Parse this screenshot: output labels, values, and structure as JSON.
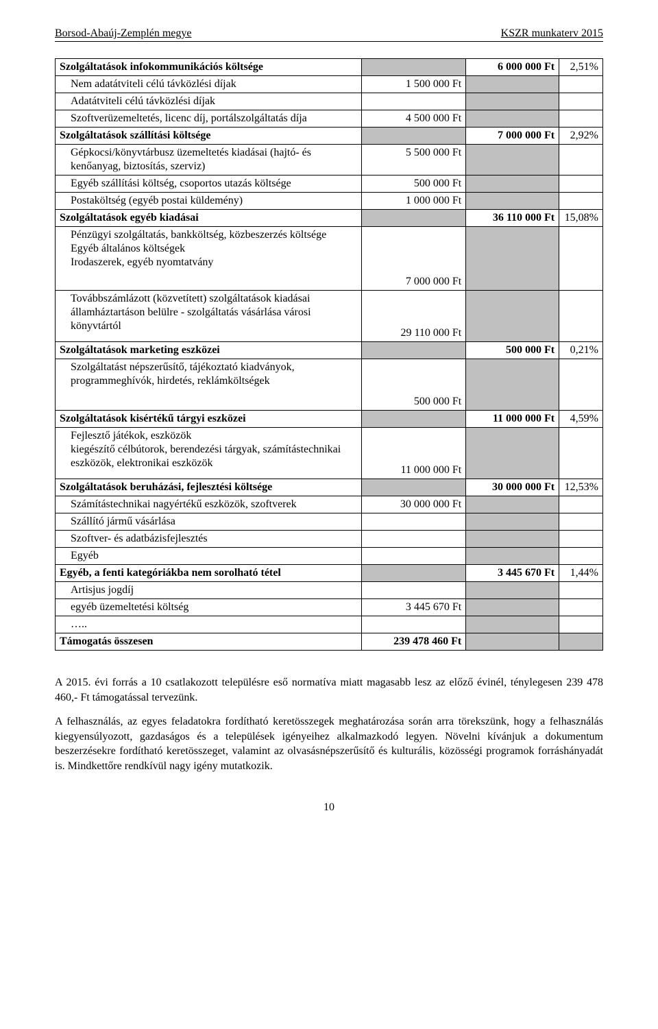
{
  "header": {
    "left": "Borsod-Abaúj-Zemplén megye",
    "right": "KSZR munkaterv 2015"
  },
  "rows": [
    {
      "type": "cat",
      "c1": "Szolgáltatások infokommunikációs költsége",
      "c3": "6 000 000 Ft",
      "c4": "2,51%"
    },
    {
      "type": "sub",
      "c1": "Nem adatátviteli célú távközlési díjak",
      "c2": "1 500 000 Ft"
    },
    {
      "type": "sub",
      "c1": "Adatátviteli célú távközlési díjak",
      "c2": ""
    },
    {
      "type": "sub",
      "c1": "Szoftverüzemeltetés, licenc díj, portálszolgáltatás díja",
      "c2": "4 500 000 Ft"
    },
    {
      "type": "cat",
      "c1": "Szolgáltatások szállítási költsége",
      "c3": "7 000 000 Ft",
      "c4": "2,92%"
    },
    {
      "type": "sub",
      "c1": "Gépkocsi/könyvtárbusz üzemeltetés kiadásai (hajtó- és kenőanyag, biztosítás, szerviz)",
      "c2": "5 500 000 Ft"
    },
    {
      "type": "sub",
      "c1": "Egyéb szállítási költség, csoportos utazás költsége",
      "c2": "500 000 Ft"
    },
    {
      "type": "sub",
      "c1": "Postaköltség (egyéb postai küldemény)",
      "c2": "1 000 000 Ft"
    },
    {
      "type": "cat",
      "c1": "Szolgáltatások egyéb kiadásai",
      "c3": "36 110 000 Ft",
      "c4": "15,08%"
    },
    {
      "type": "subtall",
      "c1": "Pénzügyi szolgáltatás, bankköltség, közbeszerzés költsége\nEgyéb általános költségek\nIrodaszerek, egyéb nyomtatvány",
      "c2": "7 000 000 Ft"
    },
    {
      "type": "subtall2",
      "c1": "Továbbszámlázott (közvetített) szolgáltatások kiadásai államháztartáson belülre - szolgáltatás vásárlása városi könyvtártól",
      "c2": "29 110 000 Ft"
    },
    {
      "type": "cat",
      "c1": "Szolgáltatások marketing eszközei",
      "c3": "500 000 Ft",
      "c4": "0,21%"
    },
    {
      "type": "subtall2",
      "c1": "Szolgáltatást népszerűsítő, tájékoztató kiadványok, programmeghívók, hirdetés, reklámköltségek",
      "c2": "500 000 Ft"
    },
    {
      "type": "cat",
      "c1": "Szolgáltatások kisértékű tárgyi eszközei",
      "c3": "11 000 000 Ft",
      "c4": "4,59%"
    },
    {
      "type": "subtall2",
      "c1": "Fejlesztő játékok, eszközök\nkiegészítő célbútorok, berendezési tárgyak, számítástechnikai eszközök, elektronikai eszközök",
      "c2": "11 000 000 Ft"
    },
    {
      "type": "cat",
      "c1": "Szolgáltatások beruházási, fejlesztési költsége",
      "c3": "30 000 000 Ft",
      "c4": "12,53%"
    },
    {
      "type": "sub",
      "c1": "Számítástechnikai nagyértékű eszközök, szoftverek",
      "c2": "30 000 000 Ft"
    },
    {
      "type": "sub",
      "c1": "Szállító jármű vásárlása",
      "c2": ""
    },
    {
      "type": "sub",
      "c1": "Szoftver- és adatbázisfejlesztés",
      "c2": ""
    },
    {
      "type": "sub",
      "c1": "Egyéb",
      "c2": ""
    },
    {
      "type": "cat",
      "c1": "Egyéb, a fenti kategóriákba nem sorolható tétel",
      "c3": "3 445 670 Ft",
      "c4": "1,44%"
    },
    {
      "type": "sub",
      "c1": "Artisjus jogdíj",
      "c2": ""
    },
    {
      "type": "sub",
      "c1": "egyéb üzemeltetési költség",
      "c2": "3 445 670 Ft"
    },
    {
      "type": "sub",
      "c1": "…..",
      "c2": ""
    },
    {
      "type": "total",
      "c1": "Támogatás összesen",
      "c2": "239 478 460 Ft"
    }
  ],
  "paragraphs": [
    "A 2015. évi forrás a 10 csatlakozott településre eső normatíva miatt magasabb lesz az előző évinél, ténylegesen 239 478 460,- Ft támogatással tervezünk.",
    "A felhasználás, az egyes feladatokra fordítható keretösszegek meghatározása során arra törekszünk, hogy a felhasználás kiegyensúlyozott, gazdaságos és a települések igényeihez alkalmazkodó legyen. Növelni kívánjuk a dokumentum beszerzésekre fordítható keretösszeget, valamint az olvasásnépszerűsítő és kulturális, közösségi programok forráshányadát is. Mindkettőre rendkívül nagy igény mutatkozik."
  ],
  "pageNumber": "10"
}
